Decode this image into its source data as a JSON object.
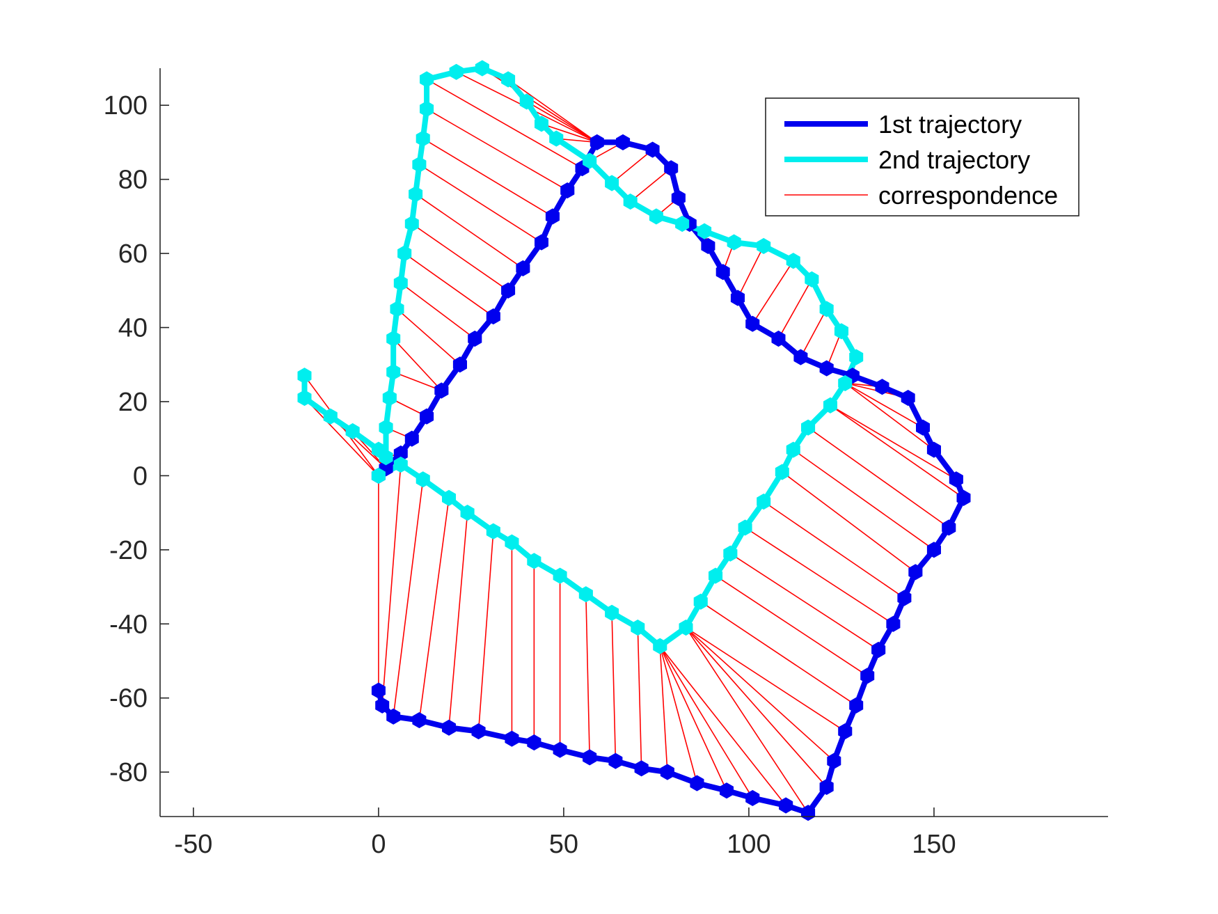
{
  "chart_data": {
    "type": "line",
    "title": "",
    "xlabel": "",
    "ylabel": "",
    "xlim": [
      -59,
      197
    ],
    "ylim": [
      -92,
      110
    ],
    "xticks": [
      -50,
      0,
      50,
      100,
      150
    ],
    "yticks": [
      -80,
      -60,
      -40,
      -20,
      0,
      20,
      40,
      60,
      80,
      100
    ],
    "xtick_labels": [
      "-50",
      "0",
      "50",
      "100",
      "150"
    ],
    "ytick_labels": [
      "-80",
      "-60",
      "-40",
      "-20",
      "0",
      "20",
      "40",
      "60",
      "80",
      "100"
    ],
    "grid": false,
    "legend_position": "top-right",
    "series": [
      {
        "name": "1st trajectory",
        "color": "#0000ee",
        "marker": "hexagon",
        "points": [
          [
            0,
            0
          ],
          [
            2,
            2
          ],
          [
            6,
            6
          ],
          [
            9,
            10
          ],
          [
            13,
            16
          ],
          [
            17,
            23
          ],
          [
            22,
            30
          ],
          [
            26,
            37
          ],
          [
            31,
            43
          ],
          [
            35,
            50
          ],
          [
            39,
            56
          ],
          [
            44,
            63
          ],
          [
            47,
            70
          ],
          [
            51,
            77
          ],
          [
            55,
            83
          ],
          [
            59,
            90
          ],
          [
            66,
            90
          ],
          [
            74,
            88
          ],
          [
            79,
            83
          ],
          [
            81,
            75
          ],
          [
            84,
            68
          ],
          [
            89,
            62
          ],
          [
            93,
            55
          ],
          [
            97,
            48
          ],
          [
            101,
            41
          ],
          [
            108,
            37
          ],
          [
            114,
            32
          ],
          [
            121,
            29
          ],
          [
            128,
            27
          ],
          [
            136,
            24
          ],
          [
            143,
            21
          ],
          [
            147,
            13
          ],
          [
            150,
            7
          ],
          [
            156,
            -1
          ],
          [
            158,
            -6
          ],
          [
            154,
            -14
          ],
          [
            150,
            -20
          ],
          [
            145,
            -26
          ],
          [
            142,
            -33
          ],
          [
            139,
            -40
          ],
          [
            135,
            -47
          ],
          [
            132,
            -54
          ],
          [
            129,
            -62
          ],
          [
            126,
            -69
          ],
          [
            123,
            -77
          ],
          [
            121,
            -84
          ],
          [
            116,
            -91
          ],
          [
            110,
            -89
          ],
          [
            101,
            -87
          ],
          [
            94,
            -85
          ],
          [
            86,
            -83
          ],
          [
            78,
            -80
          ],
          [
            71,
            -79
          ],
          [
            64,
            -77
          ],
          [
            57,
            -76
          ],
          [
            49,
            -74
          ],
          [
            42,
            -72
          ],
          [
            36,
            -71
          ],
          [
            27,
            -69
          ],
          [
            19,
            -68
          ],
          [
            11,
            -66
          ],
          [
            4,
            -65
          ],
          [
            1,
            -62
          ],
          [
            0,
            -58
          ]
        ]
      },
      {
        "name": "2nd trajectory",
        "color": "#00eeee",
        "marker": "hexagon",
        "points": [
          [
            -20,
            27
          ],
          [
            -20,
            21
          ],
          [
            -13,
            16
          ],
          [
            -7,
            12
          ],
          [
            0,
            7
          ],
          [
            2,
            5
          ],
          [
            2,
            13
          ],
          [
            3,
            21
          ],
          [
            4,
            28
          ],
          [
            4,
            37
          ],
          [
            5,
            45
          ],
          [
            6,
            52
          ],
          [
            7,
            60
          ],
          [
            9,
            68
          ],
          [
            10,
            76
          ],
          [
            11,
            84
          ],
          [
            12,
            91
          ],
          [
            13,
            99
          ],
          [
            13,
            107
          ],
          [
            21,
            109
          ],
          [
            28,
            110
          ],
          [
            35,
            107
          ],
          [
            40,
            101
          ],
          [
            44,
            95
          ],
          [
            48,
            91
          ],
          [
            57,
            85
          ],
          [
            63,
            79
          ],
          [
            68,
            74
          ],
          [
            75,
            70
          ],
          [
            82,
            68
          ],
          [
            88,
            66
          ],
          [
            96,
            63
          ],
          [
            104,
            62
          ],
          [
            112,
            58
          ],
          [
            117,
            53
          ],
          [
            121,
            45
          ],
          [
            125,
            39
          ],
          [
            129,
            32
          ],
          [
            126,
            25
          ],
          [
            122,
            19
          ],
          [
            116,
            13
          ],
          [
            112,
            7
          ],
          [
            109,
            1
          ],
          [
            104,
            -7
          ],
          [
            99,
            -14
          ],
          [
            95,
            -21
          ],
          [
            91,
            -27
          ],
          [
            87,
            -34
          ],
          [
            83,
            -41
          ],
          [
            76,
            -46
          ],
          [
            70,
            -41
          ],
          [
            63,
            -37
          ],
          [
            56,
            -32
          ],
          [
            49,
            -27
          ],
          [
            42,
            -23
          ],
          [
            36,
            -18
          ],
          [
            31,
            -15
          ],
          [
            24,
            -10
          ],
          [
            19,
            -6
          ],
          [
            12,
            -1
          ],
          [
            6,
            3
          ],
          [
            0,
            0
          ]
        ]
      },
      {
        "name": "correspondence",
        "color": "#ff0000",
        "marker": "none"
      }
    ]
  }
}
